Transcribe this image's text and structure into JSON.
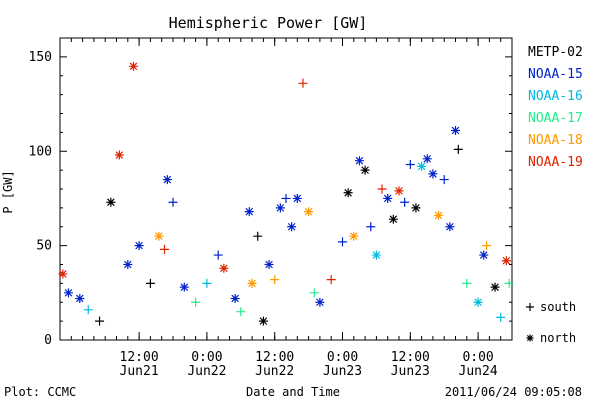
{
  "chart_data": {
    "type": "scatter",
    "title": "Hemispheric Power [GW]",
    "ylabel": "P [GW]",
    "xlabel": "Date and Time",
    "ylim": [
      0,
      160
    ],
    "yticks": [
      0,
      50,
      100,
      150
    ],
    "xlim": [
      "2011-06-20T22:00",
      "2011-06-24T06:00"
    ],
    "xticks": [
      {
        "time": "2011-06-21T12:00",
        "label": "12:00",
        "sublabel": "Jun21"
      },
      {
        "time": "2011-06-22T00:00",
        "label": "0:00",
        "sublabel": "Jun22"
      },
      {
        "time": "2011-06-22T12:00",
        "label": "12:00",
        "sublabel": "Jun22"
      },
      {
        "time": "2011-06-23T00:00",
        "label": "0:00",
        "sublabel": "Jun23"
      },
      {
        "time": "2011-06-23T12:00",
        "label": "12:00",
        "sublabel": "Jun23"
      },
      {
        "time": "2011-06-24T00:00",
        "label": "0:00",
        "sublabel": "Jun24"
      }
    ],
    "legend_position": "right",
    "series": [
      {
        "name": "METP-02",
        "color": "#000000"
      },
      {
        "name": "NOAA-15",
        "color": "#0022cc"
      },
      {
        "name": "NOAA-16",
        "color": "#00bbdd"
      },
      {
        "name": "NOAA-17",
        "color": "#22ee88"
      },
      {
        "name": "NOAA-18",
        "color": "#ff9900"
      },
      {
        "name": "NOAA-19",
        "color": "#dd2200"
      }
    ],
    "hemisphere_legend": [
      {
        "marker": "+",
        "label": "south"
      },
      {
        "marker": "*",
        "label": "north"
      }
    ],
    "points": [
      [
        "2011-06-20T22:30",
        35,
        5,
        "*"
      ],
      [
        "2011-06-20T23:30",
        25,
        1,
        "*"
      ],
      [
        "2011-06-21T01:30",
        22,
        1,
        "*"
      ],
      [
        "2011-06-21T03:00",
        16,
        2,
        "+"
      ],
      [
        "2011-06-21T05:00",
        10,
        0,
        "+"
      ],
      [
        "2011-06-21T07:00",
        73,
        0,
        "*"
      ],
      [
        "2011-06-21T08:30",
        98,
        5,
        "*"
      ],
      [
        "2011-06-21T10:00",
        40,
        1,
        "*"
      ],
      [
        "2011-06-21T11:00",
        145,
        5,
        "*"
      ],
      [
        "2011-06-21T12:00",
        50,
        1,
        "*"
      ],
      [
        "2011-06-21T14:00",
        30,
        0,
        "+"
      ],
      [
        "2011-06-21T15:30",
        55,
        4,
        "*"
      ],
      [
        "2011-06-21T16:30",
        48,
        5,
        "+"
      ],
      [
        "2011-06-21T17:00",
        85,
        1,
        "*"
      ],
      [
        "2011-06-21T18:00",
        73,
        1,
        "+"
      ],
      [
        "2011-06-21T20:00",
        28,
        1,
        "*"
      ],
      [
        "2011-06-21T22:00",
        20,
        3,
        "+"
      ],
      [
        "2011-06-22T00:00",
        30,
        2,
        "+"
      ],
      [
        "2011-06-22T02:00",
        45,
        1,
        "+"
      ],
      [
        "2011-06-22T03:00",
        38,
        5,
        "*"
      ],
      [
        "2011-06-22T05:00",
        22,
        1,
        "*"
      ],
      [
        "2011-06-22T06:00",
        15,
        3,
        "+"
      ],
      [
        "2011-06-22T07:30",
        68,
        1,
        "*"
      ],
      [
        "2011-06-22T08:00",
        30,
        4,
        "*"
      ],
      [
        "2011-06-22T09:00",
        55,
        0,
        "+"
      ],
      [
        "2011-06-22T10:00",
        10,
        0,
        "*"
      ],
      [
        "2011-06-22T11:00",
        40,
        1,
        "*"
      ],
      [
        "2011-06-22T12:00",
        32,
        4,
        "+"
      ],
      [
        "2011-06-22T13:00",
        70,
        1,
        "*"
      ],
      [
        "2011-06-22T14:00",
        75,
        1,
        "+"
      ],
      [
        "2011-06-22T15:00",
        60,
        1,
        "*"
      ],
      [
        "2011-06-22T16:00",
        75,
        1,
        "*"
      ],
      [
        "2011-06-22T17:00",
        136,
        5,
        "+"
      ],
      [
        "2011-06-22T18:00",
        68,
        4,
        "*"
      ],
      [
        "2011-06-22T19:00",
        25,
        3,
        "+"
      ],
      [
        "2011-06-22T20:00",
        20,
        1,
        "*"
      ],
      [
        "2011-06-22T22:00",
        32,
        5,
        "+"
      ],
      [
        "2011-06-23T00:00",
        52,
        1,
        "+"
      ],
      [
        "2011-06-23T01:00",
        78,
        0,
        "*"
      ],
      [
        "2011-06-23T02:00",
        55,
        4,
        "*"
      ],
      [
        "2011-06-23T03:00",
        95,
        1,
        "*"
      ],
      [
        "2011-06-23T04:00",
        90,
        0,
        "*"
      ],
      [
        "2011-06-23T05:00",
        60,
        1,
        "+"
      ],
      [
        "2011-06-23T06:00",
        45,
        2,
        "*"
      ],
      [
        "2011-06-23T07:00",
        80,
        5,
        "+"
      ],
      [
        "2011-06-23T08:00",
        75,
        1,
        "*"
      ],
      [
        "2011-06-23T09:00",
        64,
        0,
        "*"
      ],
      [
        "2011-06-23T10:00",
        79,
        5,
        "*"
      ],
      [
        "2011-06-23T11:00",
        73,
        1,
        "+"
      ],
      [
        "2011-06-23T12:00",
        93,
        1,
        "+"
      ],
      [
        "2011-06-23T13:00",
        70,
        0,
        "*"
      ],
      [
        "2011-06-23T14:00",
        92,
        2,
        "*"
      ],
      [
        "2011-06-23T15:00",
        96,
        1,
        "*"
      ],
      [
        "2011-06-23T16:00",
        88,
        1,
        "*"
      ],
      [
        "2011-06-23T17:00",
        66,
        4,
        "*"
      ],
      [
        "2011-06-23T18:00",
        85,
        1,
        "+"
      ],
      [
        "2011-06-23T19:00",
        60,
        1,
        "*"
      ],
      [
        "2011-06-23T20:00",
        111,
        1,
        "*"
      ],
      [
        "2011-06-23T20:30",
        101,
        0,
        "+"
      ],
      [
        "2011-06-23T22:00",
        30,
        3,
        "+"
      ],
      [
        "2011-06-24T00:00",
        20,
        2,
        "*"
      ],
      [
        "2011-06-24T01:00",
        45,
        1,
        "*"
      ],
      [
        "2011-06-24T01:30",
        50,
        4,
        "+"
      ],
      [
        "2011-06-24T03:00",
        28,
        0,
        "*"
      ],
      [
        "2011-06-24T04:00",
        12,
        2,
        "+"
      ],
      [
        "2011-06-24T05:00",
        42,
        5,
        "*"
      ],
      [
        "2011-06-24T05:30",
        30,
        3,
        "+"
      ]
    ]
  },
  "footer": {
    "left": "Plot: CCMC",
    "right": "2011/06/24 09:05:08"
  }
}
